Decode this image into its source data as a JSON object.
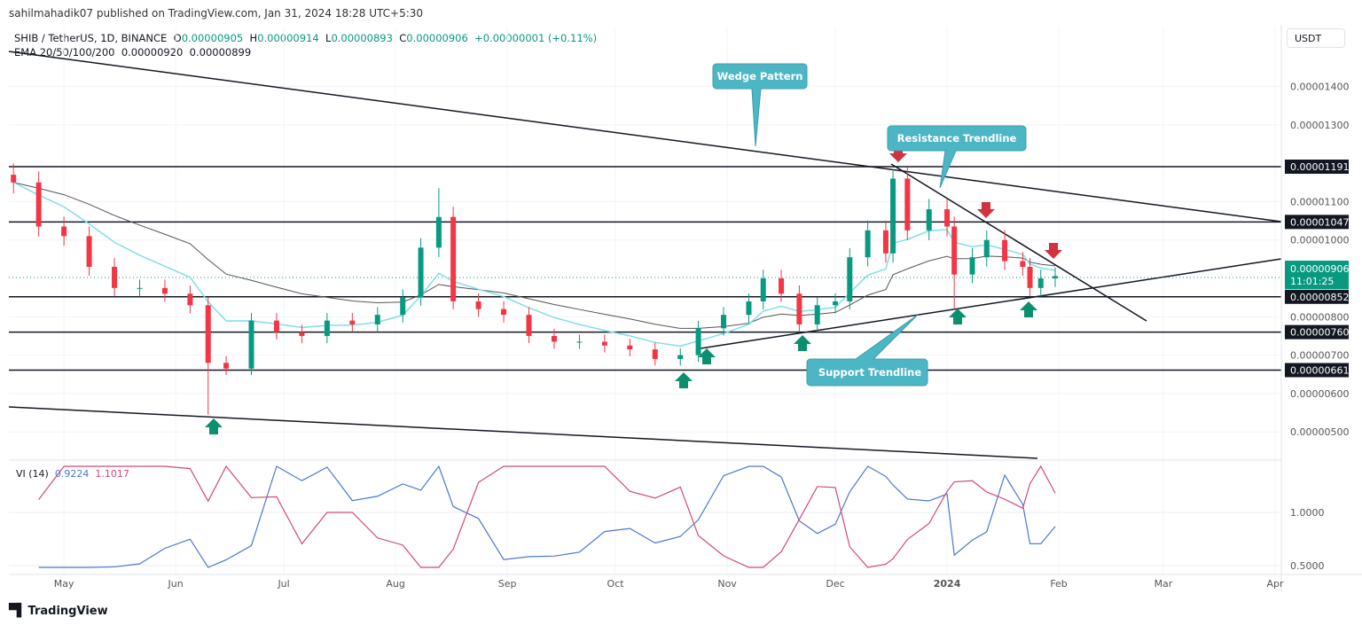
{
  "header": {
    "published": "sahilmahadik07 published on TradingView.com, Jan 31, 2024 18:28 UTC+5:30",
    "symbol": "SHIB / TetherUS, 1D, BINANCE",
    "open_label": "O",
    "open": "0.00000905",
    "high_label": "H",
    "high": "0.00000914",
    "low_label": "L",
    "low": "0.00000893",
    "close_label": "C",
    "close": "0.00000906",
    "change": "+0.00000001 (+0.11%)",
    "ema_label": "EMA 20/50/100/200",
    "ema_value_1": "0.00000920",
    "ema_value_2": "0.00000899",
    "currency_button": "USDT"
  },
  "vi": {
    "label": "VI (14)",
    "plus": "0.9224",
    "minus": "1.1017",
    "ticks": [
      "1.0000",
      "0.5000"
    ]
  },
  "footer": {
    "brand": "TradingView"
  },
  "colors": {
    "up": "#089981",
    "down": "#f23645",
    "ema_fast": "#80deea",
    "ema_slow": "#555555",
    "vi_plus": "#4a78d1",
    "vi_minus": "#d2487a",
    "callout": "#4db6c4"
  },
  "chart_data": {
    "type": "candlestick",
    "x_ticks": [
      {
        "label": "May",
        "date": "2023-05-01"
      },
      {
        "label": "Jun",
        "date": "2023-06-01"
      },
      {
        "label": "Jul",
        "date": "2023-07-01"
      },
      {
        "label": "Aug",
        "date": "2023-08-01"
      },
      {
        "label": "Sep",
        "date": "2023-09-01"
      },
      {
        "label": "Oct",
        "date": "2023-10-01"
      },
      {
        "label": "Nov",
        "date": "2023-11-01"
      },
      {
        "label": "Dec",
        "date": "2023-12-01"
      },
      {
        "label": "2024",
        "date": "2024-01-01"
      },
      {
        "label": "Feb",
        "date": "2024-02-01"
      },
      {
        "label": "Mar",
        "date": "2024-03-01"
      },
      {
        "label": "Apr",
        "date": "2024-04-01"
      }
    ],
    "y_ticks": [
      "0.00001400",
      "0.00001300",
      "0.00001100",
      "0.00001000",
      "0.00000800",
      "0.00000700",
      "0.00000600",
      "0.00000500"
    ],
    "ylim": [
      4.4e-06,
      1.55e-05
    ],
    "current_price": {
      "value": "0.00000906",
      "countdown": "11:01:25"
    },
    "levels": [
      "0.00001191",
      "0.00001047",
      "0.00000852",
      "0.00000760",
      "0.00000661"
    ],
    "closes": [
      [
        "2023-04-17",
        11.5
      ],
      [
        "2023-04-24",
        10.35
      ],
      [
        "2023-05-01",
        10.1
      ],
      [
        "2023-05-08",
        9.3
      ],
      [
        "2023-05-15",
        8.75
      ],
      [
        "2023-05-22",
        8.75
      ],
      [
        "2023-05-29",
        8.6
      ],
      [
        "2023-06-05",
        8.3
      ],
      [
        "2023-06-10",
        6.8
      ],
      [
        "2023-06-15",
        6.65
      ],
      [
        "2023-06-22",
        7.9
      ],
      [
        "2023-06-29",
        7.6
      ],
      [
        "2023-07-06",
        7.5
      ],
      [
        "2023-07-13",
        7.9
      ],
      [
        "2023-07-20",
        7.8
      ],
      [
        "2023-07-27",
        8.05
      ],
      [
        "2023-08-03",
        8.5
      ],
      [
        "2023-08-08",
        9.8
      ],
      [
        "2023-08-13",
        10.6
      ],
      [
        "2023-08-17",
        8.4
      ],
      [
        "2023-08-24",
        8.2
      ],
      [
        "2023-08-31",
        8.05
      ],
      [
        "2023-09-07",
        7.5
      ],
      [
        "2023-09-14",
        7.35
      ],
      [
        "2023-09-21",
        7.35
      ],
      [
        "2023-09-28",
        7.25
      ],
      [
        "2023-10-05",
        7.15
      ],
      [
        "2023-10-12",
        6.9
      ],
      [
        "2023-10-19",
        7.0
      ],
      [
        "2023-10-24",
        7.7
      ],
      [
        "2023-10-31",
        8.05
      ],
      [
        "2023-11-07",
        8.4
      ],
      [
        "2023-11-11",
        9.0
      ],
      [
        "2023-11-16",
        8.6
      ],
      [
        "2023-11-21",
        7.8
      ],
      [
        "2023-11-26",
        8.3
      ],
      [
        "2023-12-01",
        8.4
      ],
      [
        "2023-12-05",
        9.55
      ],
      [
        "2023-12-10",
        10.25
      ],
      [
        "2023-12-15",
        9.65
      ],
      [
        "2023-12-17",
        11.6
      ],
      [
        "2023-12-21",
        10.25
      ],
      [
        "2023-12-27",
        10.8
      ],
      [
        "2024-01-01",
        10.35
      ],
      [
        "2024-01-03",
        9.1
      ],
      [
        "2024-01-08",
        9.55
      ],
      [
        "2024-01-12",
        10.0
      ],
      [
        "2024-01-17",
        9.45
      ],
      [
        "2024-01-22",
        9.3
      ],
      [
        "2024-01-24",
        8.75
      ],
      [
        "2024-01-27",
        9.0
      ],
      [
        "2024-01-31",
        9.06
      ]
    ],
    "annotations": [
      "Wedge Pattern",
      "Resistance Trendline",
      "Support Trendline"
    ]
  }
}
